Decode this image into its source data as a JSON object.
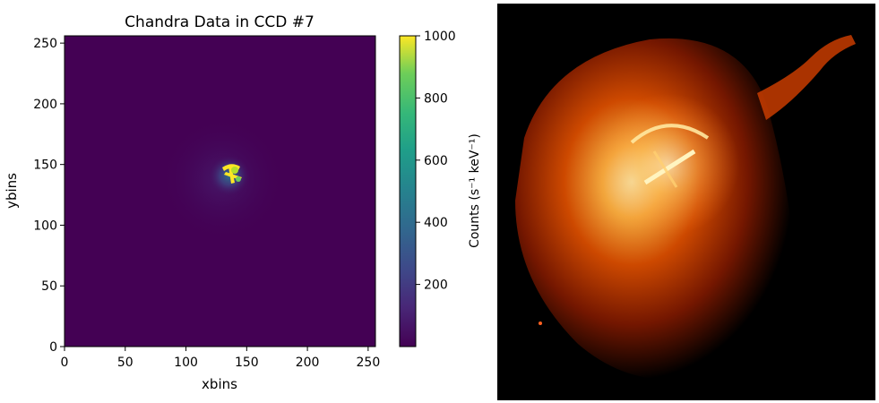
{
  "chart_data": [
    {
      "type": "heatmap",
      "title": "Chandra Data in CCD #7",
      "xlabel": "xbins",
      "ylabel": "ybins",
      "xlim": [
        0,
        256
      ],
      "ylim": [
        0,
        256
      ],
      "xticks": [
        0,
        50,
        100,
        150,
        200,
        250
      ],
      "yticks": [
        0,
        50,
        100,
        150,
        200,
        250
      ],
      "colormap": "viridis",
      "colorbar": {
        "label": "Counts (s⁻¹ keV⁻¹)",
        "range": [
          0,
          1000
        ],
        "ticks": [
          200,
          400,
          600,
          800,
          1000
        ]
      },
      "features": [
        {
          "x": 138,
          "y": 146,
          "description": "bright central emission"
        }
      ]
    }
  ],
  "image": {
    "colors": [
      "#000000",
      "#7a1800",
      "#d84d00",
      "#ffb040",
      "#fff8c0"
    ]
  },
  "colors": {
    "background": "#440154",
    "axis": "#000000"
  }
}
